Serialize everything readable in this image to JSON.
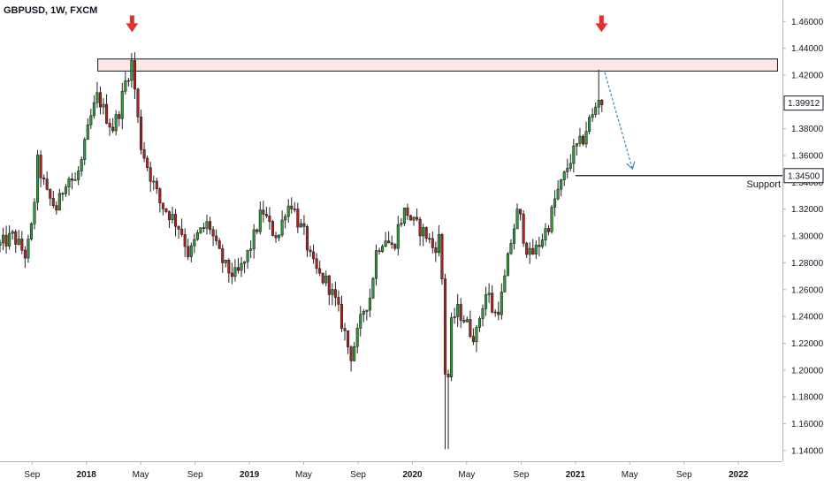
{
  "header": {
    "title": "GBPUSD, 1W, FXCM"
  },
  "colors": {
    "up": "#2e9c38",
    "down": "#b0231f",
    "wick": "#222222",
    "arrow_red": "#e03131",
    "arrow_blue": "#4a90b8",
    "zone_fill": "#fde6e6",
    "grid": "#e0e3eb"
  },
  "chart_data": {
    "type": "candlestick",
    "title": "GBPUSD, 1W, FXCM",
    "timeframe": "1W",
    "x_tick_labels": [
      {
        "label": "Sep",
        "t": 2017.667
      },
      {
        "label": "2018",
        "t": 2018.0,
        "bold": true
      },
      {
        "label": "May",
        "t": 2018.333
      },
      {
        "label": "Sep",
        "t": 2018.667
      },
      {
        "label": "2019",
        "t": 2019.0,
        "bold": true
      },
      {
        "label": "May",
        "t": 2019.333
      },
      {
        "label": "Sep",
        "t": 2019.667
      },
      {
        "label": "2020",
        "t": 2020.0,
        "bold": true
      },
      {
        "label": "May",
        "t": 2020.333
      },
      {
        "label": "Sep",
        "t": 2020.667
      },
      {
        "label": "2021",
        "t": 2021.0,
        "bold": true
      },
      {
        "label": "May",
        "t": 2021.333
      },
      {
        "label": "Sep",
        "t": 2021.667
      },
      {
        "label": "2022",
        "t": 2022.0,
        "bold": true
      }
    ],
    "y_tick_labels": [
      "1.14000",
      "1.16000",
      "1.18000",
      "1.20000",
      "1.22000",
      "1.24000",
      "1.26000",
      "1.28000",
      "1.30000",
      "1.32000",
      "1.34000",
      "1.36000",
      "1.38000",
      "1.40000",
      "1.42000",
      "1.44000",
      "1.46000"
    ],
    "ylim": [
      1.132,
      1.476
    ],
    "xlim": [
      2017.47,
      2022.27
    ],
    "price_path": [
      [
        2017.47,
        1.293
      ],
      [
        2017.55,
        1.3
      ],
      [
        2017.63,
        1.285
      ],
      [
        2017.67,
        1.31
      ],
      [
        2017.7,
        1.355
      ],
      [
        2017.76,
        1.33
      ],
      [
        2017.82,
        1.32
      ],
      [
        2017.88,
        1.345
      ],
      [
        2017.93,
        1.34
      ],
      [
        2017.97,
        1.355
      ],
      [
        2018.02,
        1.385
      ],
      [
        2018.07,
        1.405
      ],
      [
        2018.1,
        1.395
      ],
      [
        2018.16,
        1.38
      ],
      [
        2018.2,
        1.393
      ],
      [
        2018.24,
        1.415
      ],
      [
        2018.28,
        1.43
      ],
      [
        2018.33,
        1.37
      ],
      [
        2018.38,
        1.35
      ],
      [
        2018.45,
        1.325
      ],
      [
        2018.52,
        1.315
      ],
      [
        2018.58,
        1.305
      ],
      [
        2018.63,
        1.285
      ],
      [
        2018.68,
        1.3
      ],
      [
        2018.75,
        1.31
      ],
      [
        2018.8,
        1.29
      ],
      [
        2018.86,
        1.275
      ],
      [
        2018.92,
        1.27
      ],
      [
        2018.97,
        1.28
      ],
      [
        2019.03,
        1.3
      ],
      [
        2019.08,
        1.32
      ],
      [
        2019.13,
        1.305
      ],
      [
        2019.18,
        1.3
      ],
      [
        2019.22,
        1.32
      ],
      [
        2019.26,
        1.325
      ],
      [
        2019.3,
        1.31
      ],
      [
        2019.34,
        1.3
      ],
      [
        2019.38,
        1.28
      ],
      [
        2019.43,
        1.27
      ],
      [
        2019.48,
        1.265
      ],
      [
        2019.53,
        1.25
      ],
      [
        2019.58,
        1.23
      ],
      [
        2019.62,
        1.21
      ],
      [
        2019.66,
        1.225
      ],
      [
        2019.7,
        1.245
      ],
      [
        2019.74,
        1.255
      ],
      [
        2019.78,
        1.29
      ],
      [
        2019.83,
        1.3
      ],
      [
        2019.88,
        1.29
      ],
      [
        2019.92,
        1.31
      ],
      [
        2019.96,
        1.32
      ],
      [
        2020.0,
        1.31
      ],
      [
        2020.05,
        1.305
      ],
      [
        2020.09,
        1.3
      ],
      [
        2020.13,
        1.29
      ],
      [
        2020.17,
        1.3
      ],
      [
        2020.19,
        1.245
      ],
      [
        2020.21,
        1.16
      ],
      [
        2020.23,
        1.23
      ],
      [
        2020.27,
        1.245
      ],
      [
        2020.31,
        1.24
      ],
      [
        2020.35,
        1.23
      ],
      [
        2020.39,
        1.225
      ],
      [
        2020.42,
        1.245
      ],
      [
        2020.46,
        1.26
      ],
      [
        2020.5,
        1.24
      ],
      [
        2020.54,
        1.25
      ],
      [
        2020.57,
        1.27
      ],
      [
        2020.61,
        1.3
      ],
      [
        2020.65,
        1.32
      ],
      [
        2020.69,
        1.295
      ],
      [
        2020.72,
        1.285
      ],
      [
        2020.76,
        1.29
      ],
      [
        2020.8,
        1.3
      ],
      [
        2020.84,
        1.31
      ],
      [
        2020.88,
        1.33
      ],
      [
        2020.92,
        1.34
      ],
      [
        2020.96,
        1.355
      ],
      [
        2021.0,
        1.365
      ],
      [
        2021.04,
        1.37
      ],
      [
        2021.08,
        1.385
      ],
      [
        2021.11,
        1.39
      ],
      [
        2021.14,
        1.405
      ],
      [
        2021.16,
        1.4
      ],
      [
        2021.18,
        1.399
      ]
    ],
    "resistance_zone": {
      "y_top": 1.432,
      "y_bottom": 1.423,
      "x_start": 2018.07,
      "x_end": 2022.24
    },
    "support": {
      "level": 1.345,
      "label": "Support",
      "x_start": 2021.0
    },
    "current_price": {
      "value": 1.39912,
      "label": "1.39912"
    },
    "support_price_tag": {
      "value": 1.345,
      "label": "1.34500"
    },
    "annotations": [
      {
        "type": "red-down-arrow",
        "x": 2018.28,
        "y": 1.452
      },
      {
        "type": "red-down-arrow",
        "x": 2021.16,
        "y": 1.452
      },
      {
        "type": "blue-down-arrow",
        "x1": 2021.18,
        "y1": 1.422,
        "x2": 2021.35,
        "y2": 1.35
      }
    ]
  }
}
